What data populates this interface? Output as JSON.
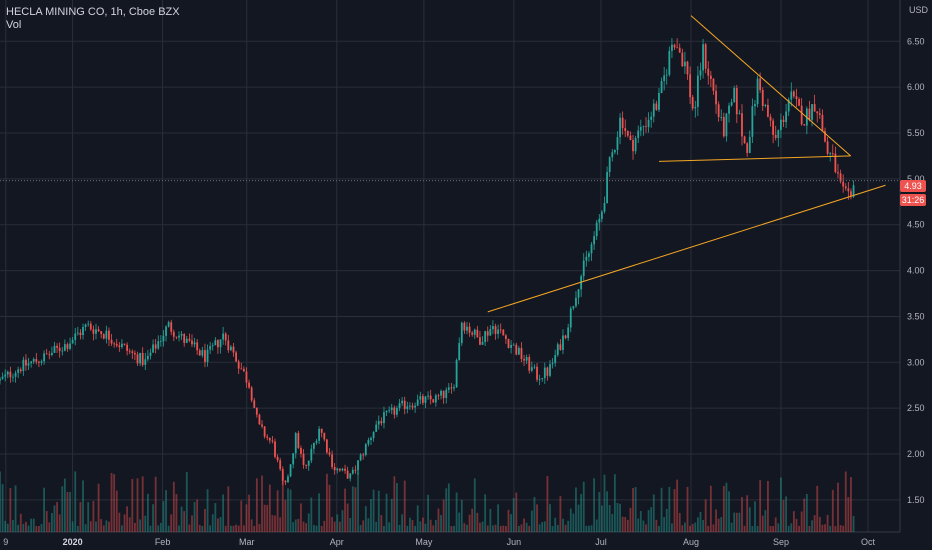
{
  "header": {
    "title": "HECLA MINING CO, 1h, Cboe BZX",
    "indicator": "Vol",
    "currency": "USD"
  },
  "badges": {
    "last_price": "4.93",
    "countdown": "31:26"
  },
  "colors": {
    "background": "#131722",
    "grid": "#2a2e39",
    "up": "#26a69a",
    "down": "#ef5350",
    "trendline": "#f5a623",
    "text": "#b2b5be"
  },
  "chart_data": {
    "type": "candlestick",
    "title": "HECLA MINING CO, 1h, Cboe BZX",
    "indicator": "Vol",
    "y_axis": {
      "ticks": [
        1.5,
        2.0,
        2.5,
        3.0,
        3.5,
        4.0,
        4.5,
        5.0,
        5.5,
        6.0,
        6.5
      ],
      "tick_labels": [
        "1.50",
        "2.00",
        "2.50",
        "3.00",
        "3.50",
        "4.00",
        "4.50",
        "5.00",
        "5.50",
        "6.00",
        "6.50"
      ],
      "ylim": [
        1.15,
        6.95
      ],
      "unit": "USD"
    },
    "x_axis": {
      "tick_labels": [
        "9",
        "2020",
        "Feb",
        "Mar",
        "Apr",
        "May",
        "Jun",
        "Jul",
        "Aug",
        "Sep",
        "Oct"
      ],
      "tick_days": [
        -23,
        0,
        31,
        60,
        91,
        121,
        152,
        182,
        213,
        244,
        274
      ],
      "xlim_days": [
        -25,
        285
      ],
      "bold": [
        "2020"
      ]
    },
    "price_path": {
      "description_days": [
        -25,
        -18,
        -10,
        -2,
        5,
        12,
        20,
        25,
        33,
        38,
        46,
        52,
        57,
        61,
        64,
        69,
        73,
        77,
        80,
        85,
        90,
        96,
        105,
        115,
        125,
        131,
        134,
        140,
        145,
        151,
        155,
        160,
        164,
        170,
        174,
        178,
        182,
        185,
        189,
        192,
        197,
        202,
        207,
        211,
        214,
        217,
        220,
        224,
        228,
        232,
        236,
        242,
        247,
        252,
        256,
        260,
        262,
        265,
        268,
        269
      ],
      "prices": [
        2.8,
        2.95,
        3.05,
        3.2,
        3.4,
        3.3,
        3.1,
        3.0,
        3.4,
        3.25,
        3.05,
        3.3,
        3.0,
        2.75,
        2.3,
        2.1,
        1.6,
        2.2,
        1.8,
        2.3,
        1.85,
        1.75,
        2.35,
        2.55,
        2.6,
        2.7,
        3.45,
        3.25,
        3.4,
        3.2,
        3.05,
        2.85,
        2.9,
        3.35,
        3.85,
        4.2,
        4.6,
        5.15,
        5.7,
        5.35,
        5.6,
        5.85,
        6.55,
        6.25,
        5.7,
        6.4,
        6.05,
        5.5,
        5.9,
        5.3,
        6.05,
        5.4,
        5.9,
        5.65,
        5.85,
        5.3,
        5.2,
        4.85,
        4.75,
        4.93
      ]
    },
    "trendlines": [
      {
        "name": "upper descending",
        "from": {
          "day": 213,
          "price": 6.78
        },
        "to": {
          "day": 268,
          "price": 5.25
        }
      },
      {
        "name": "horizontal support",
        "from": {
          "day": 202,
          "price": 5.19
        },
        "to": {
          "day": 268,
          "price": 5.25
        }
      },
      {
        "name": "ascending support",
        "from": {
          "day": 143,
          "price": 3.55
        },
        "to": {
          "day": 280,
          "price": 4.93
        }
      }
    ],
    "last_price": 4.93,
    "dotted_line_price": 4.98
  }
}
